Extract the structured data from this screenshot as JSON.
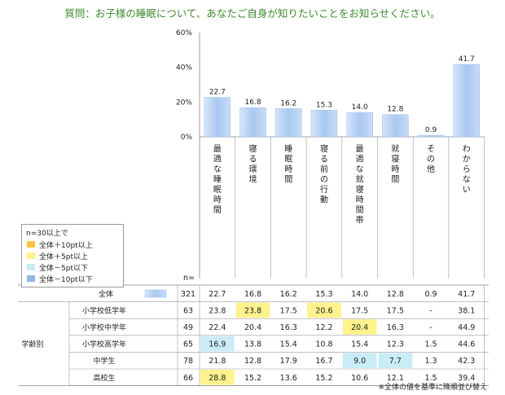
{
  "title": "質問：お子様の睡眠について、あなたご自身が知りたいことをお知らせください。",
  "chart_data": {
    "type": "bar",
    "categories": [
      "最適な睡眠時間",
      "寝る環境",
      "睡眠時間",
      "寝る前の行動",
      "最適な就寝時間帯",
      "就寝時間",
      "その他",
      "わからない"
    ],
    "values": [
      22.7,
      16.8,
      16.2,
      15.3,
      14.0,
      12.8,
      0.9,
      41.7
    ],
    "value_labels": [
      "22.7",
      "16.8",
      "16.2",
      "15.3",
      "14.0",
      "12.8",
      "0.9",
      "41.7"
    ],
    "ylim": [
      0,
      60
    ],
    "yticks": [
      "0%",
      "20%",
      "40%",
      "60%"
    ],
    "bar_color": "#a9c8f0"
  },
  "legend": {
    "header": "n=30以上で",
    "items": [
      {
        "label": "全体＋10pt以上",
        "color": "#f6c444"
      },
      {
        "label": "全体＋5pt以上",
        "color": "#fdf28c"
      },
      {
        "label": "全体－5pt以下",
        "color": "#c9ecf7"
      },
      {
        "label": "全体－10pt以下",
        "color": "#93b6e6"
      }
    ]
  },
  "table": {
    "n_label": "n=",
    "group_label": "学齢別",
    "overall": {
      "label": "全体",
      "n": "321",
      "values": [
        "22.7",
        "16.8",
        "16.2",
        "15.3",
        "14.0",
        "12.8",
        "0.9",
        "41.7"
      ]
    },
    "rows": [
      {
        "label": "小学校低学年",
        "n": "63",
        "values": [
          "23.8",
          "23.8",
          "17.5",
          "20.6",
          "17.5",
          "17.5",
          "-",
          "38.1"
        ],
        "hl": [
          "",
          "y",
          "",
          "y",
          "",
          "",
          "",
          ""
        ]
      },
      {
        "label": "小学校中学年",
        "n": "49",
        "values": [
          "22.4",
          "20.4",
          "16.3",
          "12.2",
          "20.4",
          "16.3",
          "-",
          "44.9"
        ],
        "hl": [
          "",
          "",
          "",
          "",
          "y",
          "",
          "",
          ""
        ]
      },
      {
        "label": "小学校高学年",
        "n": "65",
        "values": [
          "16.9",
          "13.8",
          "15.4",
          "10.8",
          "15.4",
          "12.3",
          "1.5",
          "44.6"
        ],
        "hl": [
          "c",
          "",
          "",
          "",
          "",
          "",
          "",
          ""
        ]
      },
      {
        "label": "中学生",
        "n": "78",
        "values": [
          "21.8",
          "12.8",
          "17.9",
          "16.7",
          "9.0",
          "7.7",
          "1.3",
          "42.3"
        ],
        "hl": [
          "",
          "",
          "",
          "",
          "c",
          "c",
          "",
          ""
        ]
      },
      {
        "label": "高校生",
        "n": "66",
        "values": [
          "28.8",
          "15.2",
          "13.6",
          "15.2",
          "10.6",
          "12.1",
          "1.5",
          "39.4"
        ],
        "hl": [
          "y",
          "",
          "",
          "",
          "",
          "",
          "",
          ""
        ]
      }
    ]
  },
  "note": "※全体の値を基準に降順並び替え"
}
